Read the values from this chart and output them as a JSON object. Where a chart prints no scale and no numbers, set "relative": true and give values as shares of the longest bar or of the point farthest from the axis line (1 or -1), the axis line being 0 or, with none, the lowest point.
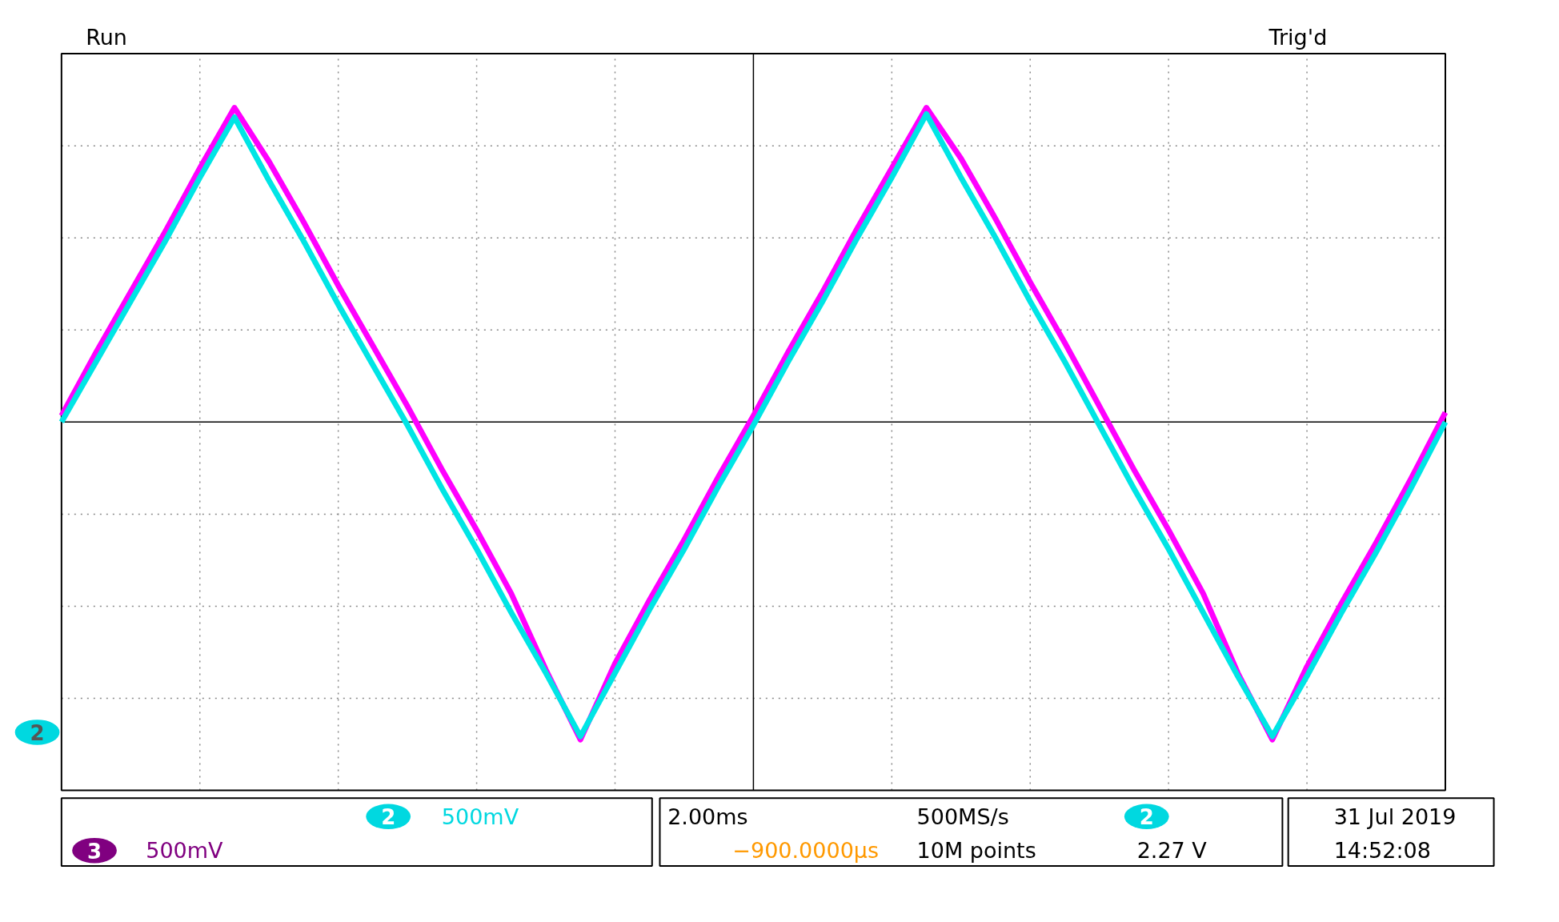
{
  "chart_data": {
    "type": "line",
    "relative": true,
    "grid": true,
    "marker": "none",
    "line_style": "solid",
    "categories": [
      null,
      null,
      null,
      null,
      null,
      null,
      null,
      null,
      null,
      null,
      null,
      null,
      null,
      null,
      null,
      null,
      null,
      null,
      null,
      null,
      null,
      null,
      null,
      null,
      null,
      null,
      null,
      null,
      null,
      null,
      null,
      null,
      null,
      null,
      null,
      null,
      null,
      null,
      null,
      null,
      null
    ],
    "series": [
      {
        "color": "#ff00ff",
        "values": [
          0.02,
          0.22,
          0.41,
          0.6,
          0.8,
          0.99,
          0.82,
          0.63,
          0.43,
          0.24,
          0.05,
          -0.15,
          -0.34,
          -0.54,
          -0.78,
          -1.0,
          -0.76,
          -0.56,
          -0.37,
          -0.17,
          0.02,
          0.22,
          0.41,
          0.61,
          0.8,
          0.99,
          0.83,
          0.64,
          0.44,
          0.25,
          0.05,
          -0.15,
          -0.34,
          -0.54,
          -0.79,
          -1.0,
          -0.77,
          -0.57,
          -0.38,
          -0.18,
          0.03
        ]
      },
      {
        "color": "#00e5e5",
        "values": [
          0,
          0.19,
          0.38,
          0.57,
          0.77,
          0.96,
          0.76,
          0.57,
          0.37,
          0.18,
          -0.01,
          -0.21,
          -0.4,
          -0.6,
          -0.79,
          -0.99,
          -0.79,
          -0.59,
          -0.4,
          -0.2,
          -0.01,
          0.19,
          0.38,
          0.58,
          0.77,
          0.97,
          0.77,
          0.58,
          0.38,
          0.19,
          -0.01,
          -0.21,
          -0.4,
          -0.6,
          -0.8,
          -0.99,
          -0.8,
          -0.6,
          -0.41,
          -0.21,
          0.0
        ]
      }
    ],
    "annotations": [
      "Run",
      "Trig'd",
      "2",
      "2",
      "500mV",
      "2.00ms",
      "500MS/s",
      "2",
      "31 Jul  2019",
      "3",
      "500mV",
      "−900.0000µs",
      "10M points",
      "2.27 V",
      "14:52:08"
    ]
  }
}
